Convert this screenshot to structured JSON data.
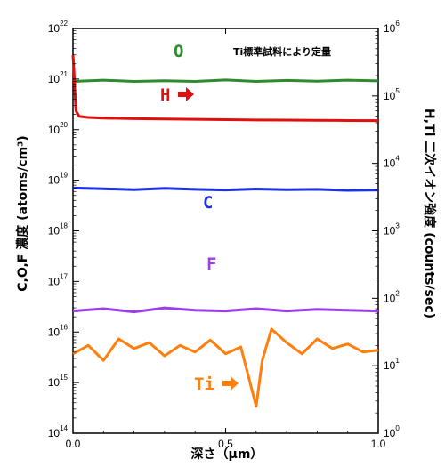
{
  "chart_data": {
    "type": "line",
    "xlabel": "深さ（μm）",
    "ylabel_left": "C,O,F 濃度 (atoms/cm³)",
    "ylabel_right": "H,Ti 二次イオン強度 (counts/sec)",
    "annotation": "Ti標準試料により定量",
    "xlim": [
      0.0,
      1.0
    ],
    "x_ticks": [
      "0.0",
      "0.5",
      "1.0"
    ],
    "ylim_left": [
      100000000000000.0,
      1e+22
    ],
    "ylim_right": [
      1,
      1000000
    ],
    "y_scale": "log",
    "left_ticks": [
      {
        "base": "10",
        "exp": "14"
      },
      {
        "base": "10",
        "exp": "15"
      },
      {
        "base": "10",
        "exp": "16"
      },
      {
        "base": "10",
        "exp": "17"
      },
      {
        "base": "10",
        "exp": "18"
      },
      {
        "base": "10",
        "exp": "19"
      },
      {
        "base": "10",
        "exp": "20"
      },
      {
        "base": "10",
        "exp": "21"
      },
      {
        "base": "10",
        "exp": "22"
      }
    ],
    "right_ticks": [
      {
        "base": "10",
        "exp": "0"
      },
      {
        "base": "10",
        "exp": "1"
      },
      {
        "base": "10",
        "exp": "2"
      },
      {
        "base": "10",
        "exp": "3"
      },
      {
        "base": "10",
        "exp": "4"
      },
      {
        "base": "10",
        "exp": "5"
      },
      {
        "base": "10",
        "exp": "6"
      }
    ],
    "series": [
      {
        "name": "O",
        "axis": "left",
        "color": "#2e8b2e",
        "x": [
          0.0,
          0.1,
          0.2,
          0.3,
          0.4,
          0.5,
          0.6,
          0.7,
          0.8,
          0.9,
          1.0
        ],
        "y": [
          9e+20,
          9.5e+20,
          9e+20,
          9.3e+20,
          9e+20,
          9.6e+20,
          9e+20,
          9.4e+20,
          9.1e+20,
          9.5e+20,
          9.2e+20
        ]
      },
      {
        "name": "H",
        "axis": "right",
        "color": "#e01010",
        "arrow": "right",
        "x": [
          0.0,
          0.003,
          0.006,
          0.01,
          0.02,
          0.05,
          0.1,
          0.2,
          0.3,
          0.4,
          0.5,
          0.6,
          0.7,
          0.8,
          0.9,
          1.0
        ],
        "y": [
          400000,
          250000,
          120000,
          60000,
          50000,
          48000,
          47000,
          46000,
          45500,
          45000,
          44500,
          44000,
          43800,
          43500,
          43200,
          43000
        ]
      },
      {
        "name": "C",
        "axis": "left",
        "color": "#1f2fe6",
        "x": [
          0.0,
          0.1,
          0.2,
          0.3,
          0.4,
          0.5,
          0.6,
          0.7,
          0.8,
          0.9,
          1.0
        ],
        "y": [
          7e+18,
          6.8e+18,
          6.5e+18,
          6.9e+18,
          6.6e+18,
          6.4e+18,
          6.7e+18,
          6.5e+18,
          6.6e+18,
          6.3e+18,
          6.4e+18
        ]
      },
      {
        "name": "F",
        "axis": "left",
        "color": "#9b3fe6",
        "x": [
          0.0,
          0.1,
          0.2,
          0.3,
          0.4,
          0.5,
          0.6,
          0.7,
          0.8,
          0.9,
          1.0
        ],
        "y": [
          2.6e+16,
          2.9e+16,
          2.5e+16,
          3e+16,
          2.7e+16,
          2.6e+16,
          2.9e+16,
          2.6e+16,
          2.8e+16,
          2.7e+16,
          2.6e+16
        ]
      },
      {
        "name": "Ti",
        "axis": "right",
        "color": "#ff7f0e",
        "arrow": "right",
        "x": [
          0.0,
          0.05,
          0.1,
          0.15,
          0.2,
          0.25,
          0.3,
          0.35,
          0.4,
          0.45,
          0.5,
          0.55,
          0.6,
          0.62,
          0.65,
          0.7,
          0.75,
          0.8,
          0.85,
          0.9,
          0.95,
          1.0
        ],
        "y": [
          15,
          20,
          12,
          25,
          18,
          22,
          14,
          20,
          16,
          24,
          15,
          19,
          2.5,
          12,
          35,
          22,
          15,
          25,
          18,
          21,
          16,
          17
        ]
      }
    ]
  }
}
